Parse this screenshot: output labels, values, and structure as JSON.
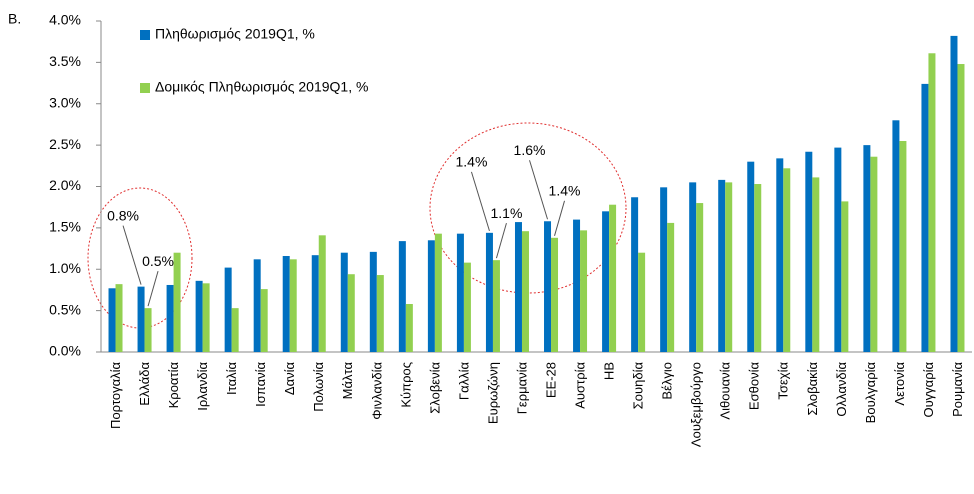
{
  "chart_data": {
    "type": "bar",
    "panel_label": "Β.",
    "categories": [
      "Πορτογαλία",
      "Ελλάδα",
      "Κροατία",
      "Ιρλανδία",
      "Ιταλία",
      "Ισπανία",
      "Δανία",
      "Πολωνία",
      "Μάλτα",
      "Φινλανδία",
      "Κύπρος",
      "Σλοβενία",
      "Γαλλία",
      "Ευρωζώνη",
      "Γερμανία",
      "ΕΕ-28",
      "Αυστρία",
      "ΗΒ",
      "Σουηδία",
      "Βέλγιο",
      "Λουξεμβούργο",
      "Λιθουανία",
      "Εσθονία",
      "Τσεχία",
      "Σλοβακία",
      "Ολλανδία",
      "Βουλγαρία",
      "Λετονία",
      "Ουγγαρία",
      "Ρουμανία"
    ],
    "series": [
      {
        "name": "Πληθωρισμός 2019Q1, %",
        "color": "#0070c0",
        "values": [
          0.77,
          0.79,
          0.81,
          0.86,
          1.02,
          1.12,
          1.16,
          1.17,
          1.2,
          1.21,
          1.34,
          1.35,
          1.43,
          1.44,
          1.57,
          1.58,
          1.6,
          1.7,
          1.87,
          1.99,
          2.05,
          2.08,
          2.3,
          2.34,
          2.42,
          2.47,
          2.5,
          2.8,
          3.24,
          3.82
        ],
        "value_labels": [
          null,
          "0.8%",
          null,
          null,
          null,
          null,
          null,
          null,
          null,
          null,
          null,
          null,
          null,
          "1.4%",
          null,
          "1.6%",
          null,
          null,
          null,
          null,
          null,
          null,
          null,
          null,
          null,
          null,
          null,
          null,
          null,
          null
        ]
      },
      {
        "name": "Δομικός Πληθωρισμός 2019Q1, %",
        "color": "#92d050",
        "values": [
          0.82,
          0.53,
          1.2,
          0.83,
          0.53,
          0.76,
          1.12,
          1.41,
          0.94,
          0.93,
          0.58,
          1.43,
          1.08,
          1.11,
          1.46,
          1.38,
          1.47,
          1.78,
          1.2,
          1.56,
          1.8,
          2.05,
          2.03,
          2.22,
          2.11,
          1.82,
          2.36,
          2.55,
          3.61,
          3.48
        ],
        "value_labels": [
          null,
          "0.5%",
          null,
          null,
          null,
          null,
          null,
          null,
          null,
          null,
          null,
          null,
          null,
          "1.1%",
          null,
          "1.4%",
          null,
          null,
          null,
          null,
          null,
          null,
          null,
          null,
          null,
          null,
          null,
          null,
          null,
          null
        ]
      }
    ],
    "ylim": [
      0,
      4
    ],
    "yticks": [
      {
        "value": 0,
        "label": "0.0%"
      },
      {
        "value": 0.5,
        "label": "0.5%"
      },
      {
        "value": 1,
        "label": "1.0%"
      },
      {
        "value": 1.5,
        "label": "1.5%"
      },
      {
        "value": 2,
        "label": "2.0%"
      },
      {
        "value": 2.5,
        "label": "2.5%"
      },
      {
        "value": 3,
        "label": "3.0%"
      },
      {
        "value": 3.5,
        "label": "3.5%"
      },
      {
        "value": 4,
        "label": "4.0%"
      }
    ],
    "grid": false
  }
}
